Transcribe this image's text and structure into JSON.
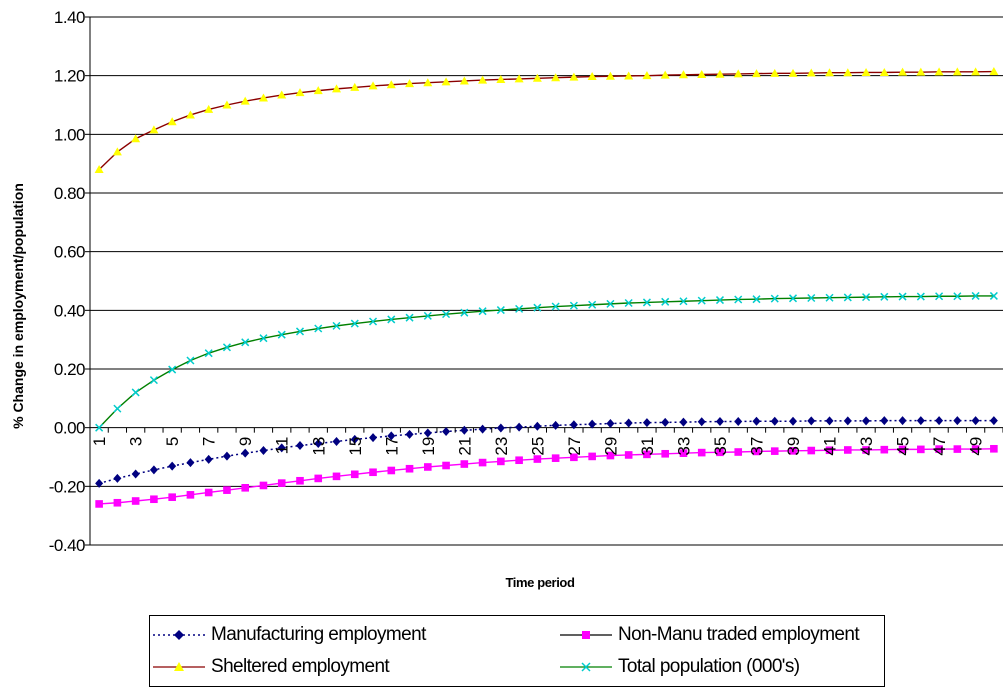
{
  "chart_data": {
    "type": "line",
    "title": "",
    "xlabel": "Time period",
    "ylabel": "% Change in employment/population",
    "ylim": [
      -0.4,
      1.4
    ],
    "y_ticks": [
      "1.40",
      "1.20",
      "1.00",
      "0.80",
      "0.60",
      "0.40",
      "0.20",
      "0.00",
      "-0.20",
      "-0.40"
    ],
    "x": [
      1,
      2,
      3,
      4,
      5,
      6,
      7,
      8,
      9,
      10,
      11,
      12,
      13,
      14,
      15,
      16,
      17,
      18,
      19,
      20,
      21,
      22,
      23,
      24,
      25,
      26,
      27,
      28,
      29,
      30,
      31,
      32,
      33,
      34,
      35,
      36,
      37,
      38,
      39,
      40,
      41,
      42,
      43,
      44,
      45,
      46,
      47,
      48,
      49,
      50
    ],
    "x_tick_labels": [
      "1",
      "3",
      "5",
      "7",
      "9",
      "11",
      "13",
      "15",
      "17",
      "19",
      "21",
      "23",
      "25",
      "27",
      "29",
      "31",
      "33",
      "35",
      "37",
      "39",
      "41",
      "43",
      "45",
      "47",
      "49"
    ],
    "grid": "horizontal",
    "legend_position": "bottom",
    "series": [
      {
        "name": "Manufacturing employment",
        "color": "#000080",
        "line": "dotted",
        "marker": "diamond",
        "values": [
          -0.19,
          -0.173,
          -0.158,
          -0.144,
          -0.131,
          -0.119,
          -0.108,
          -0.097,
          -0.087,
          -0.078,
          -0.069,
          -0.061,
          -0.054,
          -0.047,
          -0.04,
          -0.034,
          -0.028,
          -0.023,
          -0.018,
          -0.013,
          -0.009,
          -0.005,
          -0.001,
          0.002,
          0.005,
          0.008,
          0.01,
          0.012,
          0.014,
          0.016,
          0.017,
          0.018,
          0.019,
          0.02,
          0.021,
          0.021,
          0.022,
          0.022,
          0.022,
          0.023,
          0.023,
          0.023,
          0.023,
          0.024,
          0.024,
          0.024,
          0.024,
          0.024,
          0.024,
          0.024
        ]
      },
      {
        "name": "Non-Manu traded employment",
        "color": "#FF00FF",
        "line": "solid",
        "marker": "square",
        "values": [
          -0.26,
          -0.256,
          -0.25,
          -0.244,
          -0.237,
          -0.229,
          -0.221,
          -0.213,
          -0.205,
          -0.197,
          -0.189,
          -0.181,
          -0.173,
          -0.166,
          -0.159,
          -0.152,
          -0.146,
          -0.14,
          -0.134,
          -0.129,
          -0.124,
          -0.119,
          -0.115,
          -0.111,
          -0.107,
          -0.104,
          -0.101,
          -0.098,
          -0.095,
          -0.093,
          -0.091,
          -0.089,
          -0.087,
          -0.085,
          -0.084,
          -0.083,
          -0.081,
          -0.08,
          -0.079,
          -0.078,
          -0.077,
          -0.076,
          -0.076,
          -0.075,
          -0.074,
          -0.074,
          -0.073,
          -0.073,
          -0.073,
          -0.072
        ]
      },
      {
        "name": "Sheltered employment",
        "color": "#FFFF00",
        "line_color": "#8B0000",
        "line": "solid",
        "marker": "triangle",
        "values": [
          0.88,
          0.94,
          0.985,
          1.015,
          1.043,
          1.066,
          1.085,
          1.1,
          1.113,
          1.124,
          1.134,
          1.142,
          1.149,
          1.155,
          1.16,
          1.165,
          1.169,
          1.173,
          1.176,
          1.179,
          1.182,
          1.185,
          1.187,
          1.189,
          1.191,
          1.193,
          1.195,
          1.197,
          1.198,
          1.199,
          1.2,
          1.202,
          1.203,
          1.204,
          1.205,
          1.206,
          1.207,
          1.208,
          1.208,
          1.209,
          1.21,
          1.21,
          1.211,
          1.211,
          1.212,
          1.212,
          1.213,
          1.213,
          1.213,
          1.214
        ]
      },
      {
        "name": "Total population (000's)",
        "color": "#00CCCC",
        "line_color": "#008000",
        "line": "solid",
        "marker": "x",
        "values": [
          0.0,
          0.065,
          0.12,
          0.162,
          0.198,
          0.229,
          0.254,
          0.274,
          0.291,
          0.305,
          0.317,
          0.328,
          0.338,
          0.347,
          0.355,
          0.362,
          0.369,
          0.375,
          0.381,
          0.387,
          0.392,
          0.397,
          0.401,
          0.405,
          0.409,
          0.413,
          0.416,
          0.419,
          0.422,
          0.425,
          0.427,
          0.429,
          0.431,
          0.433,
          0.435,
          0.437,
          0.438,
          0.44,
          0.441,
          0.442,
          0.443,
          0.444,
          0.445,
          0.446,
          0.447,
          0.447,
          0.448,
          0.448,
          0.449,
          0.449
        ]
      }
    ]
  }
}
